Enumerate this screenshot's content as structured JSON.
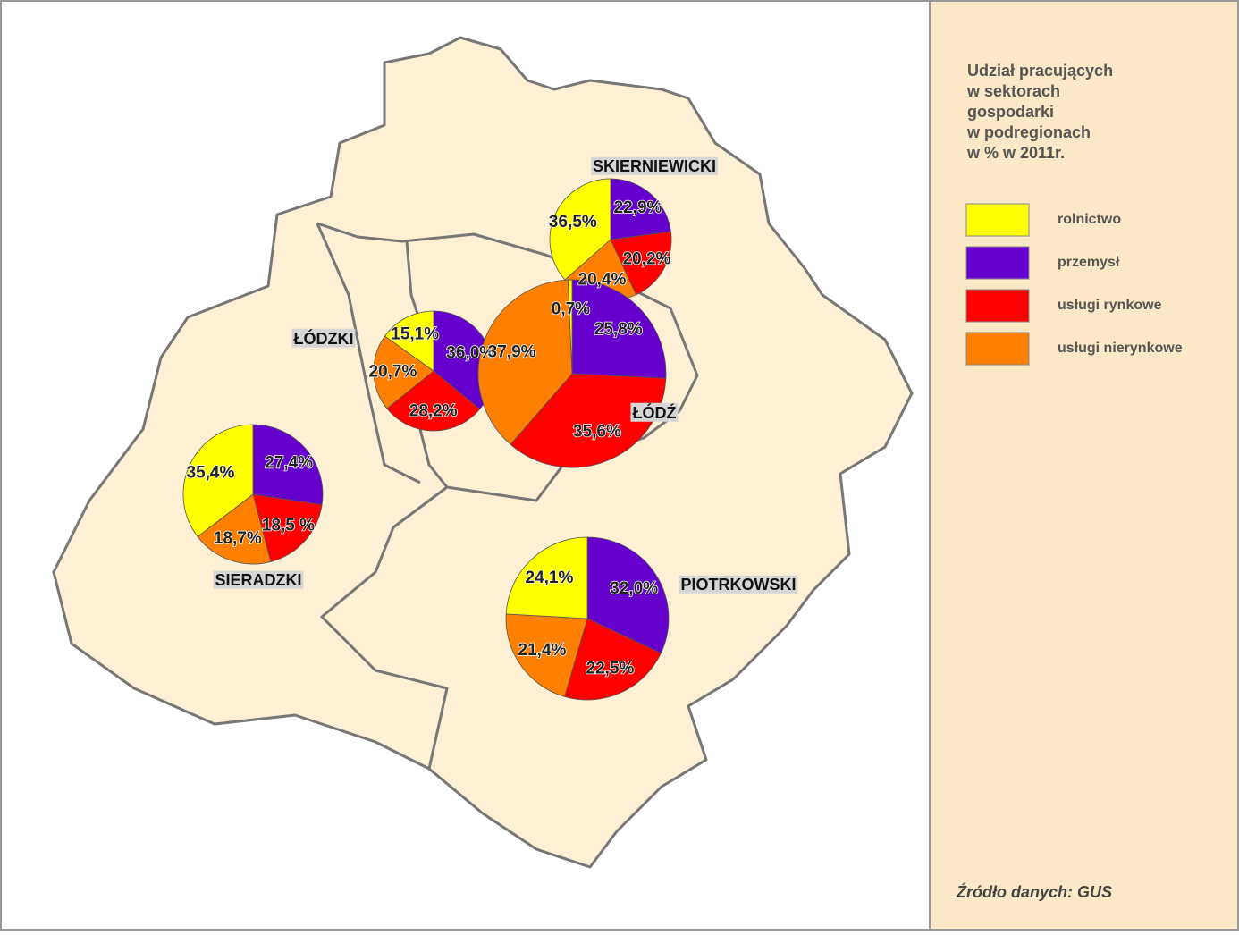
{
  "legend": {
    "title": [
      "Udział pracujących",
      "w sektorach",
      "gospodarki",
      "w podregionach",
      "w % w 2011r."
    ],
    "items": [
      {
        "label": "rolnictwo",
        "color": "#ffff00"
      },
      {
        "label": "przemysł",
        "color": "#6600cc"
      },
      {
        "label": "usługi rynkowe",
        "color": "#ff0000"
      },
      {
        "label": "usługi nierynkowe",
        "color": "#ff7f00"
      }
    ]
  },
  "regions": [
    {
      "name": "SKIERNIEWICKI",
      "values": [
        36.5,
        22.9,
        20.2,
        20.4
      ],
      "value_labels": [
        "36,5%",
        "22,9%",
        "20,2%",
        "20,4%"
      ]
    },
    {
      "name": "ŁÓDZKI",
      "values": [
        15.1,
        36.0,
        28.2,
        20.7
      ],
      "value_labels": [
        "15,1%",
        "36,0%",
        "28,2%",
        "20,7%"
      ]
    },
    {
      "name": "ŁÓDŹ",
      "values": [
        0.7,
        25.8,
        35.6,
        37.9
      ],
      "value_labels": [
        "0,7%",
        "25,8%",
        "35,6%",
        "37,9%"
      ]
    },
    {
      "name": "SIERADZKI",
      "values": [
        35.4,
        27.4,
        18.5,
        18.7
      ],
      "value_labels": [
        "35,4%",
        "27,4%",
        "18,5 %",
        "18,7%"
      ]
    },
    {
      "name": "PIOTRKOWSKI",
      "values": [
        24.1,
        32.0,
        22.5,
        21.4
      ],
      "value_labels": [
        "24,1%",
        "32,0%",
        "22,5%",
        "21,4%"
      ]
    }
  ],
  "source": "Źródło danych: GUS"
}
